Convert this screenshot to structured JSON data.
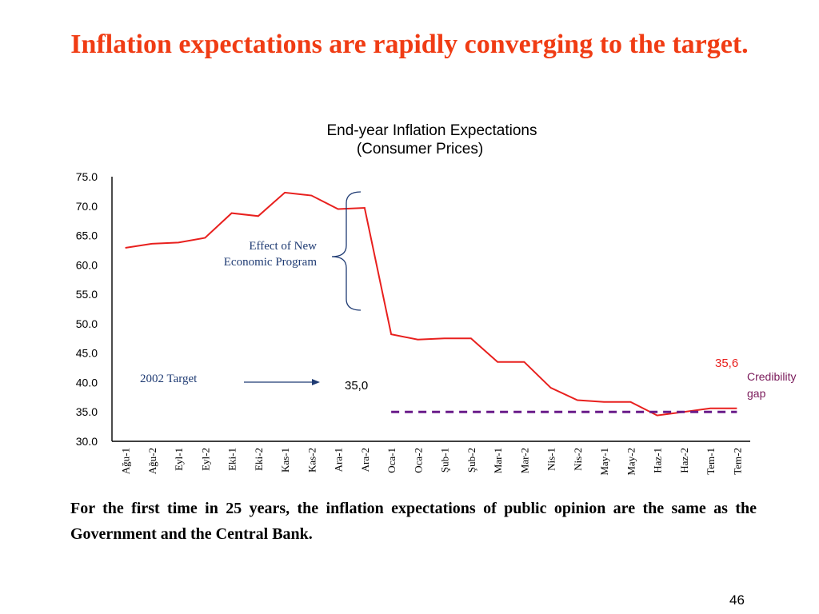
{
  "slide": {
    "title": "Inflation expectations are rapidly converging to the target.",
    "footnote": "For the first time in 25 years, the inflation expectations of public opinion are the same as the Government and the Central Bank.",
    "page_number": "46"
  },
  "chart_data": {
    "type": "line",
    "title": "End-year Inflation Expectations",
    "subtitle": "(Consumer Prices)",
    "categories": [
      "Ağu-1",
      "Ağu-2",
      "Eyl-1",
      "Eyl-2",
      "Eki-1",
      "Eki-2",
      "Kas-1",
      "Kas-2",
      "Ara-1",
      "Ara-2",
      "Oca-1",
      "Oca-2",
      "Şub-1",
      "Şub-2",
      "Mar-1",
      "Mar-2",
      "Nis-1",
      "Nis-2",
      "May-1",
      "May-2",
      "Haz-1",
      "Haz-2",
      "Tem-1",
      "Tem-2"
    ],
    "yticks": [
      "75.0",
      "70.0",
      "65.0",
      "60.0",
      "55.0",
      "50.0",
      "45.0",
      "40.0",
      "35.0",
      "30.0"
    ],
    "ylim": [
      30,
      75
    ],
    "series": [
      {
        "color": "#e8201e",
        "values": [
          62.9,
          63.6,
          63.8,
          64.6,
          68.8,
          68.3,
          72.3,
          71.8,
          69.5,
          69.7,
          48.2,
          47.3,
          47.5,
          47.5,
          43.5,
          43.5,
          39.1,
          37.0,
          36.7,
          36.7,
          34.4,
          35.0,
          35.6,
          35.6
        ]
      },
      {
        "color": "#6a1c8a",
        "style": "dashed",
        "values": [
          null,
          null,
          null,
          null,
          null,
          null,
          null,
          null,
          null,
          null,
          35.0,
          35.0,
          35.0,
          35.0,
          35.0,
          35.0,
          35.0,
          35.0,
          35.0,
          35.0,
          35.0,
          35.0,
          35.0,
          35.0
        ]
      }
    ],
    "annotations": {
      "program_label": [
        "Effect of New",
        "Economic Program"
      ],
      "target_label": "2002 Target",
      "target_value": "35,0",
      "last_value": "35,6",
      "credibility_label": [
        "Credibility",
        "gap"
      ]
    },
    "colors": {
      "line": "#e8201e",
      "target": "#6a1c8a",
      "annotation_text": "#1f3b73",
      "credibility_text": "#7a1a5a",
      "last_value_text": "#e8201e"
    },
    "grid": false
  }
}
